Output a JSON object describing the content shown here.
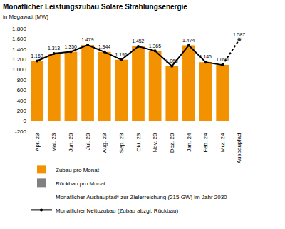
{
  "chart_data": {
    "type": "bar",
    "title": "Monatlicher Leistungszubau Solare Strahlungsenergie",
    "subtitle": "in Megawatt [MW]",
    "categories": [
      "Apr. 23",
      "Mai. 23",
      "Jun. 23",
      "Jul. 23",
      "Aug. 23",
      "Sep. 23",
      "Okt. 23",
      "Nov. 23",
      "Dez. 23",
      "Jan. 24",
      "Feb. 24",
      "Mrz. 24",
      "Ausbaupfad"
    ],
    "series": [
      {
        "name": "Zubau pro Monat",
        "type": "bar",
        "color": "#f39200",
        "values": [
          1168,
          1313,
          1350,
          1479,
          1344,
          1191,
          1452,
          1365,
          1068,
          1474,
          1145,
          1090,
          null
        ],
        "value_labels": [
          "1.168",
          "1.313",
          "1.350",
          "1.479",
          "1.344",
          "1.191",
          "1.452",
          "1.365",
          "1.068",
          "1.474",
          "1.145",
          "1.090",
          null
        ],
        "data_labels": true
      },
      {
        "name": "Rückbau pro Monat",
        "type": "bar",
        "color": "#808080",
        "values": [
          0,
          0,
          0,
          0,
          0,
          0,
          0,
          0,
          0,
          0,
          0,
          0,
          null
        ]
      },
      {
        "name": "Monatlicher Ausbaupfad* zur Zielerreichung (215 GW) im Jahr 2030",
        "type": "bar",
        "color": "#f39200",
        "marker": "hatch",
        "values": [
          null,
          null,
          null,
          null,
          null,
          null,
          null,
          null,
          null,
          null,
          null,
          null,
          1587
        ],
        "value_labels": [
          null,
          null,
          null,
          null,
          null,
          null,
          null,
          null,
          null,
          null,
          null,
          null,
          "1.587"
        ],
        "data_labels": true
      },
      {
        "name": "Monatlicher Nettozubau (Zubau abzgl. Rückbau)",
        "type": "line",
        "color": "#000000",
        "line_style": "solid",
        "marker": "circle",
        "values": [
          1168,
          1313,
          1350,
          1479,
          1344,
          1191,
          1452,
          1365,
          1068,
          1474,
          1145,
          1090,
          null
        ]
      }
    ],
    "stacked": true,
    "ylim": [
      -200,
      1800
    ],
    "yticks": [
      -200,
      0,
      200,
      400,
      600,
      800,
      {
        "value": 1000,
        "label": "1.000"
      },
      {
        "value": 1200,
        "label": "1.200"
      },
      {
        "value": 1400,
        "label": "1.400"
      },
      {
        "value": 1600,
        "label": "1.600"
      },
      {
        "value": 1800,
        "label": "1.800"
      }
    ],
    "grid": false,
    "legend": "bottom-left"
  }
}
